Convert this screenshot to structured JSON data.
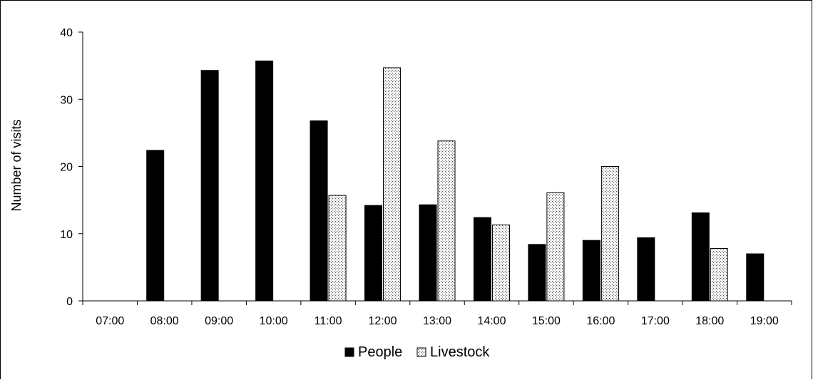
{
  "chart_data": {
    "type": "bar",
    "title": "",
    "xlabel": "",
    "ylabel": "Number of visits",
    "categories": [
      "07:00",
      "08:00",
      "09:00",
      "10:00",
      "11:00",
      "12:00",
      "13:00",
      "14:00",
      "15:00",
      "16:00",
      "17:00",
      "18:00",
      "19:00"
    ],
    "series": [
      {
        "name": "People",
        "color": "#000000",
        "pattern": "solid",
        "values": [
          0,
          22.4,
          34.3,
          35.7,
          26.8,
          14.2,
          14.3,
          12.4,
          8.4,
          9.0,
          9.4,
          13.1,
          7.0
        ]
      },
      {
        "name": "Livestock",
        "color": "#ffffff",
        "pattern": "dotted",
        "values": [
          0,
          0,
          0,
          0,
          15.7,
          34.7,
          23.8,
          11.3,
          16.1,
          20.0,
          0,
          7.8,
          0
        ]
      }
    ],
    "ylim": [
      0,
      40
    ],
    "yticks": [
      0,
      10,
      20,
      30,
      40
    ],
    "grid": false,
    "legend": "bottom-center"
  }
}
